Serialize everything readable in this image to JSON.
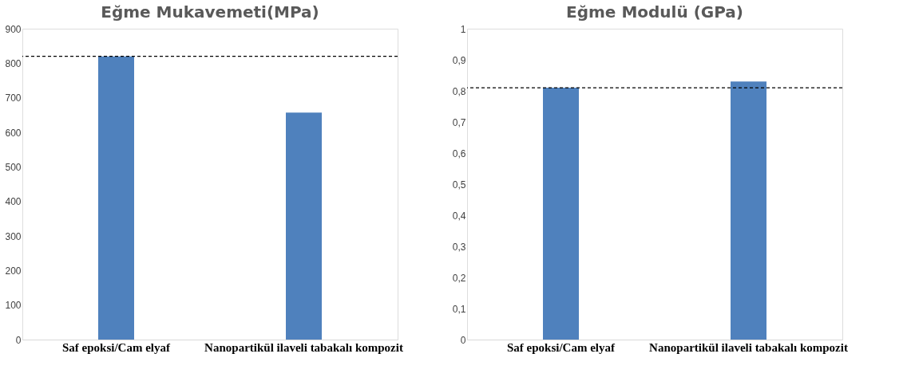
{
  "chart_data": [
    {
      "type": "bar",
      "title": "Eğme Mukavemeti(MPa)",
      "categories": [
        "Saf epoksi/Cam elyaf",
        "Nanopartikül ilaveli tabakalı kompozit"
      ],
      "values": [
        820,
        657
      ],
      "color": "#4f81bd",
      "ylim": [
        0,
        900
      ],
      "yticks": [
        0,
        100,
        200,
        300,
        400,
        500,
        600,
        700,
        800,
        900
      ],
      "grid": false,
      "ref_lines": [
        {
          "axis": "y",
          "value": 820,
          "color": "#000000",
          "line_style": "dashed"
        }
      ]
    },
    {
      "type": "bar",
      "title": "Eğme Modulü (GPa)",
      "categories": [
        "Saf epoksi/Cam elyaf",
        "Nanopartikül ilaveli tabakalı kompozit"
      ],
      "values": [
        0.81,
        0.83
      ],
      "color": "#4f81bd",
      "ylim": [
        0,
        1
      ],
      "yticks": [
        0,
        {
          "value": 0.1,
          "label": "0,1"
        },
        {
          "value": 0.2,
          "label": "0,2"
        },
        {
          "value": 0.3,
          "label": "0,3"
        },
        {
          "value": 0.4,
          "label": "0,4"
        },
        {
          "value": 0.5,
          "label": "0,5"
        },
        {
          "value": 0.6,
          "label": "0,6"
        },
        {
          "value": 0.7,
          "label": "0,7"
        },
        {
          "value": 0.8,
          "label": "0,8"
        },
        {
          "value": 0.9,
          "label": "0,9"
        },
        1
      ],
      "grid": false,
      "ref_lines": [
        {
          "axis": "y",
          "value": 0.81,
          "color": "#000000",
          "line_style": "dashed"
        }
      ]
    }
  ]
}
